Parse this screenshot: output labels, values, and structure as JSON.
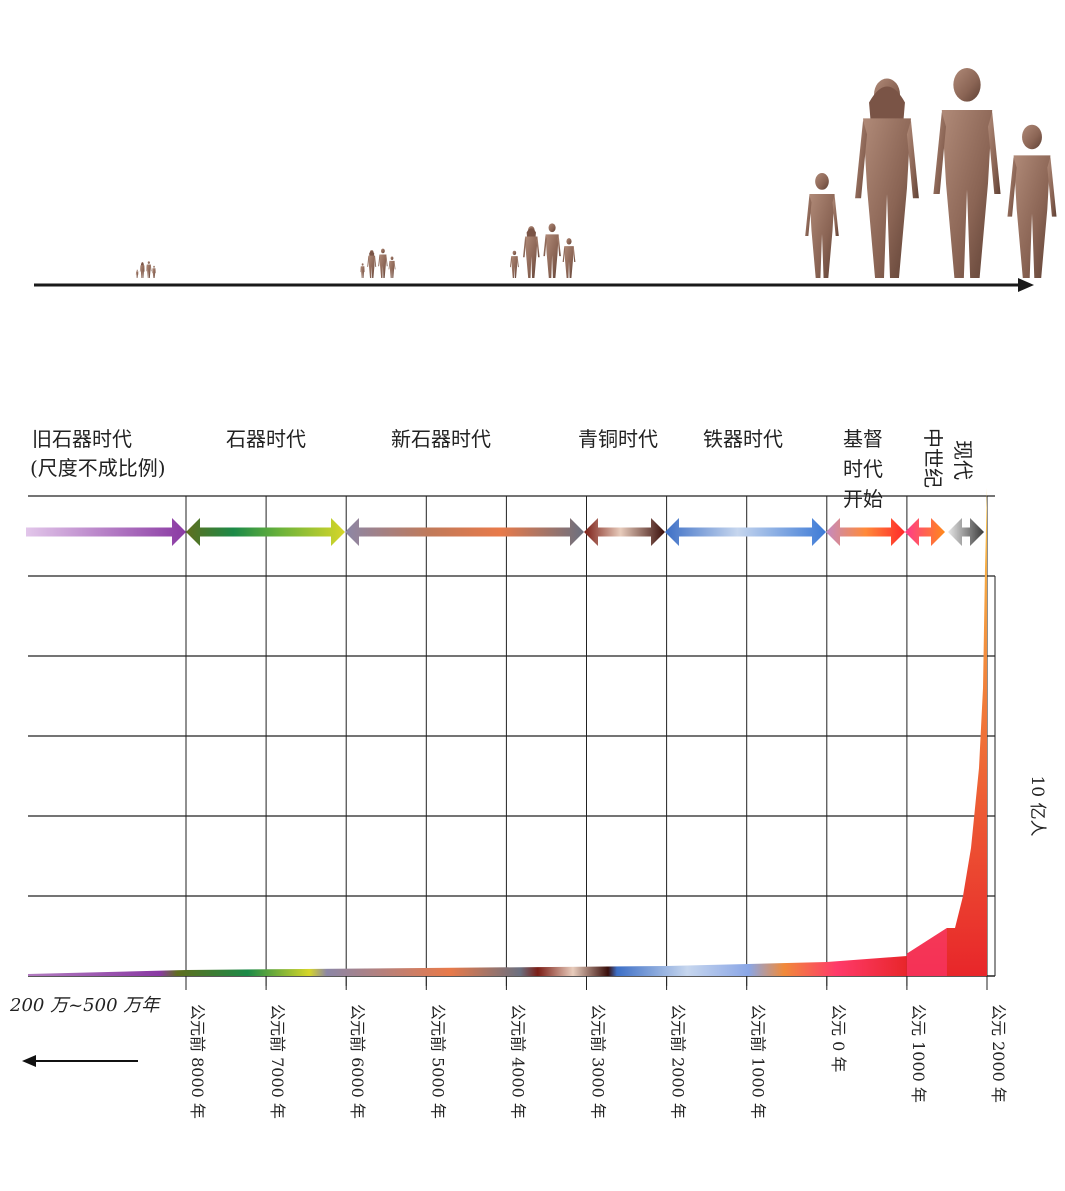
{
  "top_figure": {
    "groups": 4
  },
  "eras": [
    {
      "name": "旧石器时代",
      "note": "(尺度不成比例)"
    },
    {
      "name": "石器时代"
    },
    {
      "name": "新石器时代"
    },
    {
      "name": "青铜时代"
    },
    {
      "name": "铁器时代"
    },
    {
      "name": "基督时代开始",
      "lines": [
        "基督",
        "时代",
        "开始"
      ]
    },
    {
      "name": "中世纪"
    },
    {
      "name": "现代"
    }
  ],
  "colors": {
    "paleolithic": "#9b4fb0",
    "stone": "#5aa13a",
    "neolithic": "#e07a4a",
    "bronze": "#7b2a22",
    "iron": "#5b8fd4",
    "christian": "#ff4a2a",
    "medieval": "#ff7a2a",
    "modern": "#555555",
    "curve_top": "#f6c04a",
    "curve_bottom": "#e8262a"
  },
  "chart_data": {
    "type": "area",
    "title": "",
    "xlabel": "",
    "ylabel": "10 亿人",
    "left_label": "200 万~500 万年",
    "x_ticks": [
      "公元前 8000 年",
      "公元前 7000 年",
      "公元前 6000 年",
      "公元前 5000 年",
      "公元前 4000 年",
      "公元前 3000 年",
      "公元前 2000 年",
      "公元前 1000 年",
      "公元 0 年",
      "公元 1000 年",
      "公元 2000 年"
    ],
    "x_tick_values": [
      -8000,
      -7000,
      -6000,
      -5000,
      -4000,
      -3000,
      -2000,
      -1000,
      0,
      1000,
      2000
    ],
    "xlim": [
      -8000,
      2000
    ],
    "ylim": [
      0,
      6
    ],
    "y_gridlines": [
      1,
      2,
      3,
      4,
      5,
      6
    ],
    "grid": true,
    "series": [
      {
        "x": [
          -8000,
          -7000,
          -6000,
          -5000,
          -4000,
          -3000,
          -2000,
          -1000,
          0,
          1000,
          1500,
          1600,
          1700,
          1800,
          1900,
          1950,
          1975,
          2000
        ],
        "values": [
          0.005,
          0.006,
          0.008,
          0.01,
          0.015,
          0.02,
          0.027,
          0.05,
          0.19,
          0.28,
          0.6,
          0.6,
          1.0,
          1.6,
          2.6,
          3.6,
          5.1,
          6.1
        ]
      }
    ]
  }
}
